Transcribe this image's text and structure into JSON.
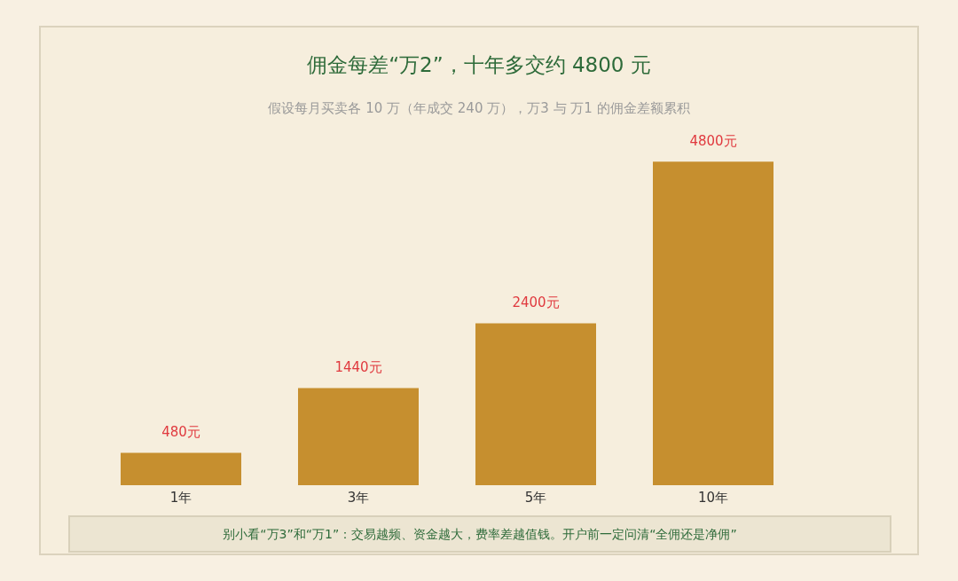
{
  "chart_data": {
    "type": "bar",
    "title": "佣金每差“万2”，十年多交约 4800 元",
    "subtitle": "假设每月买卖各 10 万（年成交 240 万），万3 与 万1 的佣金差额累积",
    "categories": [
      "1年",
      "3年",
      "5年",
      "10年"
    ],
    "values": [
      480,
      1440,
      2400,
      4800
    ],
    "value_labels": [
      "480元",
      "1440元",
      "2400元",
      "4800元"
    ],
    "color": "#c68f2f",
    "annotations": [
      "别小看“万3”和“万1”：交易越频、资金越大，费率差越值钱。开户前一定问清“全佣还是净佣”"
    ]
  }
}
